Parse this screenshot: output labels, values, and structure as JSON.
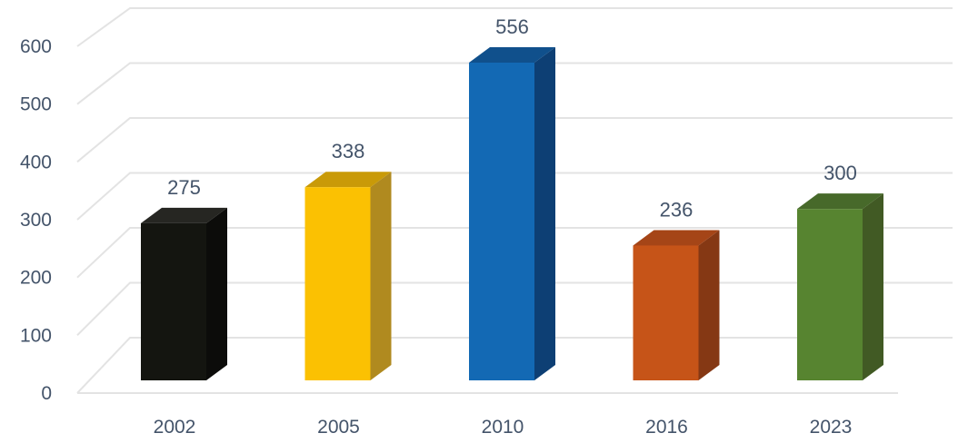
{
  "chart_data": {
    "type": "bar",
    "title": "",
    "xlabel": "",
    "ylabel": "",
    "categories": [
      "2002",
      "2005",
      "2010",
      "2016",
      "2023"
    ],
    "values": [
      275,
      338,
      556,
      236,
      300
    ],
    "labels": [
      "275",
      "338",
      "556",
      "236",
      "300"
    ],
    "ylim": [
      0,
      600
    ],
    "yticks": [
      "0",
      "100",
      "200",
      "300",
      "400",
      "500",
      "600"
    ],
    "grid": true,
    "legend": "none",
    "style": "3d-column",
    "colors": [
      {
        "front": "#141510",
        "side": "#0c0c0a",
        "top": "#262622"
      },
      {
        "front": "#fbc102",
        "side": "#b08a1f",
        "top": "#c99a08"
      },
      {
        "front": "#1369b4",
        "side": "#0d3f74",
        "top": "#10508c"
      },
      {
        "front": "#c65418",
        "side": "#853814",
        "top": "#a54517"
      },
      {
        "front": "#578430",
        "side": "#415a24",
        "top": "#47692a"
      }
    ],
    "grid_color": "#e3e3e3"
  }
}
